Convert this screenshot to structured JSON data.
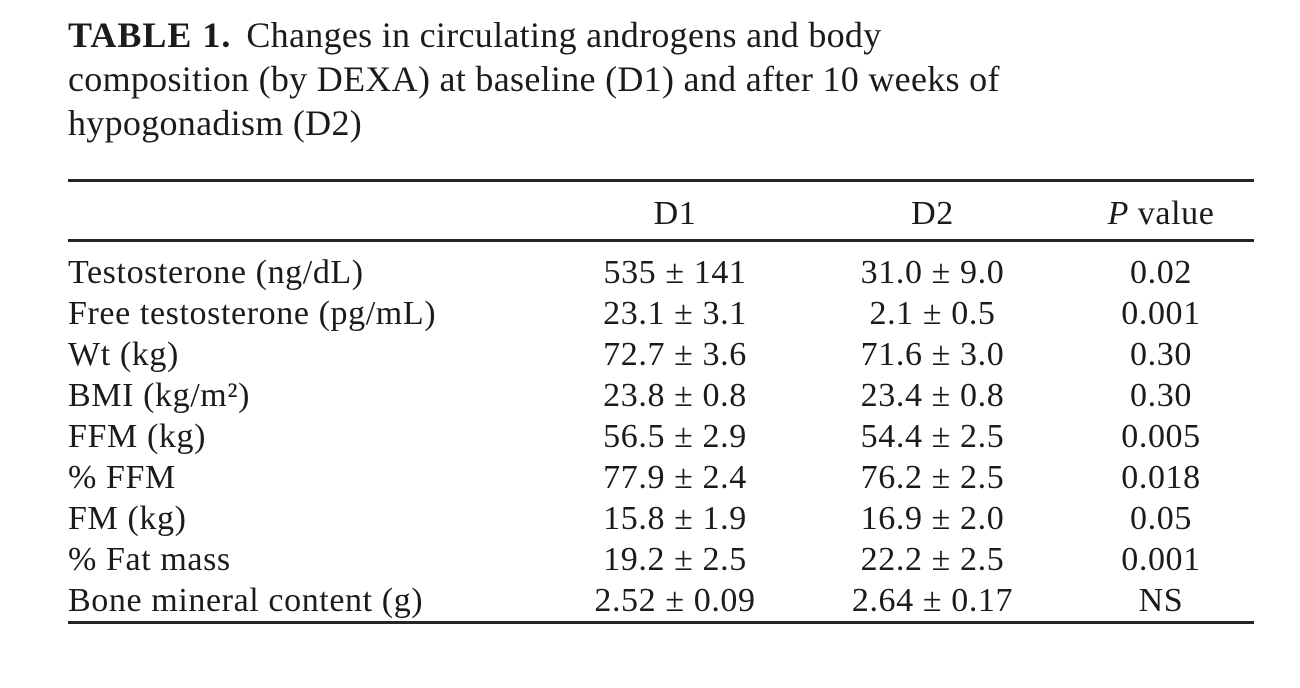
{
  "caption": {
    "label": "TABLE 1.",
    "line1": "Changes in circulating androgens and body",
    "line2": "composition (by DEXA) at baseline (D1) and after 10 weeks of",
    "line3": "hypogonadism (D2)"
  },
  "table": {
    "columns": {
      "label": "",
      "d1": "D1",
      "d2": "D2",
      "p_symbol": "P",
      "p_word": "value"
    },
    "rows": [
      {
        "label": "Testosterone (ng/dL)",
        "d1": "535 ± 141",
        "d2": "31.0 ± 9.0",
        "p": "0.02"
      },
      {
        "label": "Free testosterone (pg/mL)",
        "d1": "23.1 ± 3.1",
        "d2": "2.1 ± 0.5",
        "p": "0.001"
      },
      {
        "label": "Wt (kg)",
        "d1": "72.7 ± 3.6",
        "d2": "71.6 ± 3.0",
        "p": "0.30"
      },
      {
        "label": "BMI (kg/m²)",
        "d1": "23.8 ± 0.8",
        "d2": "23.4 ± 0.8",
        "p": "0.30"
      },
      {
        "label": "FFM (kg)",
        "d1": "56.5 ± 2.9",
        "d2": "54.4 ± 2.5",
        "p": "0.005"
      },
      {
        "label": "% FFM",
        "d1": "77.9 ± 2.4",
        "d2": "76.2 ± 2.5",
        "p": "0.018"
      },
      {
        "label": "FM (kg)",
        "d1": "15.8 ± 1.9",
        "d2": "16.9 ± 2.0",
        "p": "0.05"
      },
      {
        "label": "% Fat mass",
        "d1": "19.2 ± 2.5",
        "d2": "22.2 ± 2.5",
        "p": "0.001"
      },
      {
        "label": "Bone mineral content (g)",
        "d1": "2.52 ± 0.09",
        "d2": "2.64 ± 0.17",
        "p": "NS"
      }
    ]
  }
}
